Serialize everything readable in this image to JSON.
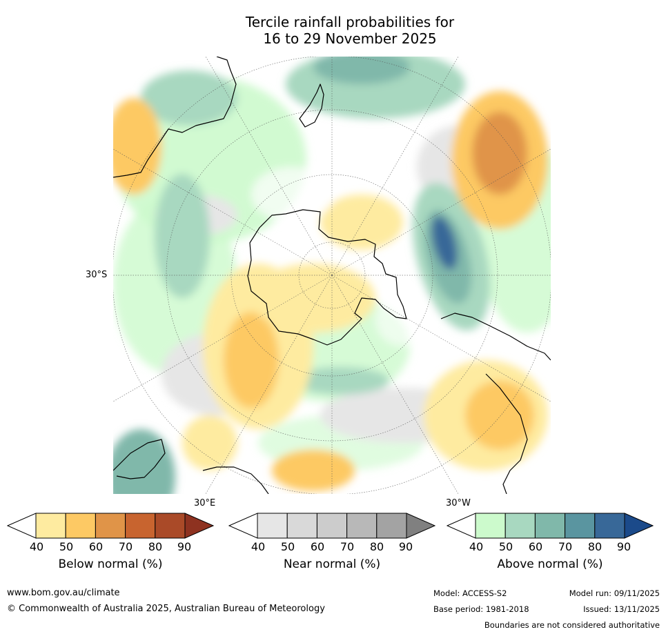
{
  "title": {
    "line1": "Tercile rainfall probabilities for",
    "line2": "16 to 29 November 2025"
  },
  "map": {
    "projection_labels": {
      "lat_label": "30°S",
      "lon_label_east": "30°E",
      "lon_label_west": "30°W"
    }
  },
  "colorbars": [
    {
      "label": "Below normal (%)",
      "ticks": [
        "40",
        "50",
        "60",
        "70",
        "80",
        "90"
      ],
      "colors": [
        "#ffffff",
        "#feeba0",
        "#fdc964",
        "#e09448",
        "#c8642f",
        "#aa4a28",
        "#8e3220"
      ]
    },
    {
      "label": "Near normal (%)",
      "ticks": [
        "40",
        "50",
        "60",
        "70",
        "80",
        "90"
      ],
      "colors": [
        "#ffffff",
        "#e6e6e6",
        "#d9d9d9",
        "#cccccc",
        "#b8b8b8",
        "#a3a3a3",
        "#808080"
      ]
    },
    {
      "label": "Above normal (%)",
      "ticks": [
        "40",
        "50",
        "60",
        "70",
        "80",
        "90"
      ],
      "colors": [
        "#ffffff",
        "#ccfacc",
        "#a8d8c0",
        "#80b8aa",
        "#5a95a0",
        "#386898",
        "#1b4a8a"
      ]
    }
  ],
  "footer": {
    "website": "www.bom.gov.au/climate",
    "copyright": "© Commonwealth of Australia 2025, Australian Bureau of Meteorology",
    "model": "Model: ACCESS-S2",
    "model_run": "Model run: 09/11/2025",
    "base_period": "Base period: 1981-2018",
    "issued": "Issued: 13/11/2025",
    "disclaimer": "Boundaries are not considered authoritative"
  }
}
